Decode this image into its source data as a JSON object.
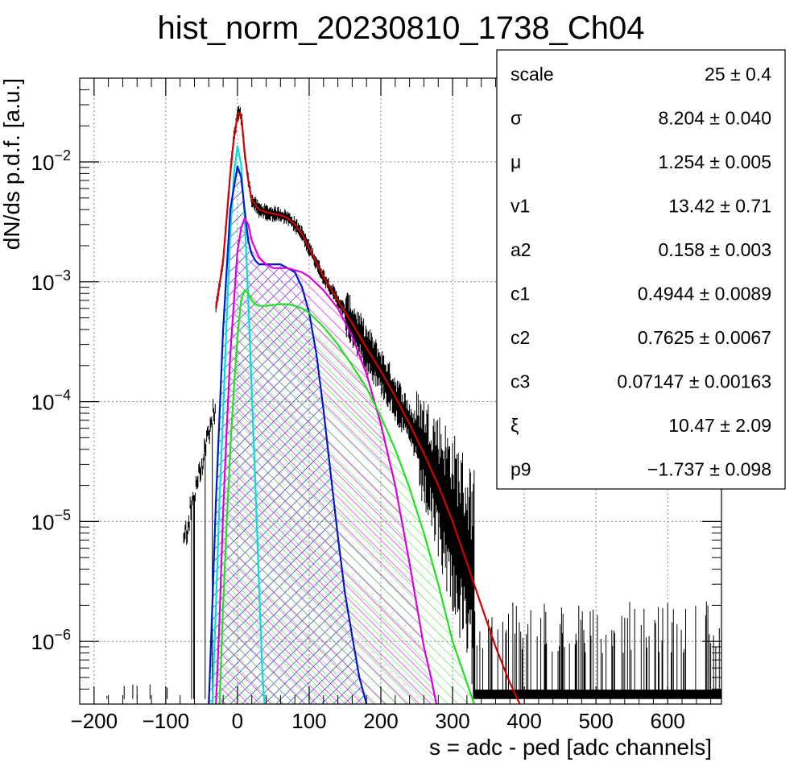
{
  "chart_data": {
    "type": "line",
    "title": "hist_norm_20230810_1738_Ch04",
    "xlabel": "s = adc - ped [adc channels]",
    "ylabel": "dN/ds p.d.f. [a.u.]",
    "xlim": [
      -220,
      675
    ],
    "ylim": [
      3e-07,
      0.05
    ],
    "yscale": "log",
    "grid": true,
    "x_ticks": [
      -200,
      -100,
      0,
      100,
      200,
      300,
      400,
      500,
      600
    ],
    "x_tick_labels": [
      "−200",
      "−100",
      "0",
      "100",
      "200",
      "300",
      "400",
      "500",
      "600"
    ],
    "y_ticks": [
      1e-06,
      1e-05,
      0.0001,
      0.001,
      0.01
    ],
    "y_tick_labels": [
      {
        "mantissa": "10",
        "exponent": "−6"
      },
      {
        "mantissa": "10",
        "exponent": "−5"
      },
      {
        "mantissa": "10",
        "exponent": "−4"
      },
      {
        "mantissa": "10",
        "exponent": "−3"
      },
      {
        "mantissa": "10",
        "exponent": "−2"
      }
    ],
    "legend_placement": "top-right",
    "series": [
      {
        "color": "#d40000",
        "hatch": false,
        "x": [
          -30,
          -20,
          -15,
          -10,
          -5,
          0,
          3,
          6,
          10,
          15,
          20,
          30,
          40,
          50,
          60,
          70,
          80,
          90,
          100,
          120,
          140,
          160,
          180,
          200,
          220,
          240,
          260,
          280,
          300,
          320,
          340,
          360,
          380,
          400
        ],
        "y": [
          0.0006,
          0.0015,
          0.0035,
          0.008,
          0.016,
          0.024,
          0.026,
          0.022,
          0.012,
          0.007,
          0.0048,
          0.004,
          0.0038,
          0.0037,
          0.0036,
          0.0034,
          0.003,
          0.0025,
          0.0019,
          0.0011,
          0.0007,
          0.00045,
          0.00028,
          0.00018,
          0.00011,
          6.5e-05,
          3.7e-05,
          2e-05,
          1e-05,
          4.5e-06,
          2e-06,
          9e-07,
          4.5e-07,
          2.5e-07
        ]
      },
      {
        "color": "#00e0e0",
        "hatch": false,
        "x": [
          -35,
          -30,
          -25,
          -20,
          -15,
          -10,
          -5,
          0,
          5,
          10,
          15,
          20,
          25,
          30,
          35,
          40
        ],
        "y": [
          3e-07,
          2e-06,
          1.5e-05,
          8e-05,
          0.0005,
          0.0025,
          0.008,
          0.0135,
          0.0095,
          0.0035,
          0.0007,
          0.00012,
          2e-05,
          3e-06,
          5e-07,
          2e-07
        ]
      },
      {
        "color": "#0018cc",
        "hatch": true,
        "x": [
          -40,
          -35,
          -30,
          -20,
          -10,
          0,
          5,
          10,
          15,
          20,
          25,
          30,
          40,
          50,
          60,
          70,
          80,
          90,
          100,
          110,
          120,
          130,
          140,
          150,
          160,
          170,
          180,
          185
        ],
        "y": [
          3e-07,
          2e-06,
          1.5e-05,
          0.0004,
          0.004,
          0.0092,
          0.0075,
          0.004,
          0.0022,
          0.0017,
          0.0015,
          0.0014,
          0.0014,
          0.0014,
          0.0014,
          0.0013,
          0.0012,
          0.0009,
          0.00055,
          0.00025,
          8.5e-05,
          2.5e-05,
          7.5e-06,
          2.5e-06,
          1.1e-06,
          5e-07,
          3e-07,
          2.5e-07
        ]
      },
      {
        "color": "#dd00dd",
        "hatch": true,
        "x": [
          -30,
          -25,
          -20,
          -15,
          -10,
          0,
          5,
          10,
          15,
          20,
          30,
          40,
          50,
          60,
          70,
          80,
          90,
          100,
          120,
          140,
          160,
          180,
          200,
          220,
          240,
          260,
          270,
          280
        ],
        "y": [
          3e-07,
          1.5e-06,
          1.2e-05,
          6e-05,
          0.00025,
          0.0018,
          0.0028,
          0.0034,
          0.003,
          0.0022,
          0.0016,
          0.0014,
          0.0013,
          0.0013,
          0.0013,
          0.00125,
          0.0012,
          0.0011,
          0.00085,
          0.0006,
          0.00035,
          0.00017,
          6.5e-05,
          2e-05,
          4.5e-06,
          9e-07,
          5e-07,
          2.5e-07
        ]
      },
      {
        "color": "#22e022",
        "hatch": true,
        "x": [
          -25,
          -20,
          -15,
          -10,
          -5,
          0,
          5,
          10,
          15,
          20,
          25,
          30,
          40,
          50,
          60,
          70,
          80,
          90,
          100,
          120,
          140,
          160,
          180,
          200,
          220,
          240,
          260,
          280,
          300,
          320,
          330,
          340
        ],
        "y": [
          3e-07,
          2e-06,
          1e-05,
          4e-05,
          0.00013,
          0.00035,
          0.0007,
          0.00085,
          0.0008,
          0.0007,
          0.00065,
          0.00063,
          0.00063,
          0.00064,
          0.00065,
          0.00065,
          0.00063,
          0.0006,
          0.00055,
          0.00042,
          0.0003,
          0.0002,
          0.00013,
          7.5e-05,
          4e-05,
          1.9e-05,
          8e-06,
          3e-06,
          1e-06,
          4.5e-07,
          3e-07,
          2.5e-07
        ]
      }
    ],
    "stats_box": [
      {
        "name": "scale",
        "value": "25 ± 0.4"
      },
      {
        "name": "σ",
        "value": "8.204 ± 0.040"
      },
      {
        "name": "μ",
        "value": "1.254 ± 0.005"
      },
      {
        "name": "v1",
        "value": "13.42 ± 0.71"
      },
      {
        "name": "a2",
        "value": "0.158 ± 0.003"
      },
      {
        "name": "c1",
        "value": "0.4944 ± 0.0089"
      },
      {
        "name": "c2",
        "value": "0.7625 ± 0.0067"
      },
      {
        "name": "c3",
        "value": "0.07147 ± 0.00163"
      },
      {
        "name": "ξ",
        "value": "10.47 ± 2.09"
      },
      {
        "name": "p9",
        "value": "−1.737 ± 0.098"
      }
    ],
    "colors": {
      "data": "#000000",
      "grid": "#8a8a8a"
    }
  }
}
